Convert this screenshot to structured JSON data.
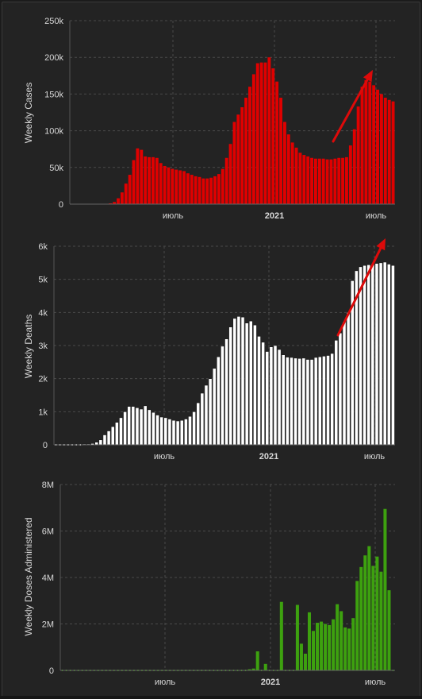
{
  "colors": {
    "background": "#232323",
    "cases": "#e00000",
    "deaths": "#ffffff",
    "doses": "#3da10f",
    "arrow": "#dd0a0a",
    "grid": "#4a4a4a",
    "text": "#d9d9d9"
  },
  "chart_data": [
    {
      "type": "bar",
      "ylabel": "Weekly Cases",
      "xlabel": "",
      "ylim": [
        0,
        250000
      ],
      "y_ticks": [
        "0",
        "50k",
        "100k",
        "150k",
        "200k",
        "250k"
      ],
      "y_tick_values": [
        0,
        50000,
        100000,
        150000,
        200000,
        250000
      ],
      "x_tick_labels": [
        "июль",
        "2021",
        "июль"
      ],
      "x_tick_bold": [
        false,
        true,
        false
      ],
      "grid": true,
      "trend_arrow": true,
      "values": [
        0,
        0,
        0,
        0,
        0,
        0,
        0,
        0,
        0,
        0,
        1000,
        3000,
        8000,
        16000,
        28000,
        40000,
        60000,
        76000,
        74000,
        65000,
        64000,
        64000,
        63000,
        56000,
        52000,
        50000,
        48000,
        47000,
        46000,
        45000,
        42000,
        40000,
        38000,
        37000,
        35000,
        35000,
        36000,
        38000,
        41000,
        48000,
        63000,
        82000,
        112000,
        122000,
        132000,
        145000,
        160000,
        177000,
        192000,
        193000,
        193000,
        200000,
        185000,
        167000,
        145000,
        112000,
        95000,
        84000,
        77000,
        70000,
        67000,
        65000,
        63000,
        62000,
        62000,
        62000,
        61000,
        61000,
        62000,
        63000,
        63000,
        64000,
        80000,
        102000,
        133000,
        160000,
        169000,
        167000,
        162000,
        156000,
        150000,
        145000,
        142000,
        140000
      ]
    },
    {
      "type": "bar",
      "ylabel": "Weekly Deaths",
      "xlabel": "",
      "ylim": [
        0,
        6000
      ],
      "y_ticks": [
        "0",
        "1k",
        "2k",
        "3k",
        "4k",
        "5k",
        "6k"
      ],
      "y_tick_values": [
        0,
        1000,
        2000,
        3000,
        4000,
        5000,
        6000
      ],
      "x_tick_labels": [
        "июль",
        "2021",
        "июль"
      ],
      "x_tick_bold": [
        false,
        true,
        false
      ],
      "grid": true,
      "trend_arrow": true,
      "values": [
        0,
        0,
        0,
        0,
        0,
        0,
        0,
        10,
        20,
        40,
        80,
        150,
        300,
        420,
        550,
        680,
        820,
        1000,
        1160,
        1160,
        1120,
        1080,
        1180,
        1060,
        980,
        900,
        840,
        820,
        780,
        740,
        720,
        740,
        780,
        860,
        1000,
        1270,
        1560,
        1800,
        2000,
        2310,
        2660,
        2980,
        3200,
        3560,
        3820,
        3880,
        3860,
        3680,
        3740,
        3620,
        3280,
        3100,
        2820,
        2960,
        3000,
        2880,
        2720,
        2650,
        2640,
        2620,
        2610,
        2620,
        2580,
        2580,
        2640,
        2660,
        2680,
        2700,
        2760,
        3160,
        3380,
        3720,
        4000,
        4960,
        5260,
        5380,
        5420,
        5440,
        5460,
        5480,
        5500,
        5520,
        5460,
        5420
      ]
    },
    {
      "type": "bar",
      "ylabel": "Weekly Doses Administered",
      "xlabel": "",
      "ylim": [
        0,
        8000000
      ],
      "y_ticks": [
        "0",
        "2M",
        "4M",
        "6M",
        "8M"
      ],
      "y_tick_values": [
        0,
        2000000,
        4000000,
        6000000,
        8000000
      ],
      "x_tick_labels": [
        "июль",
        "2021",
        "июль"
      ],
      "x_tick_bold": [
        false,
        true,
        false
      ],
      "grid": true,
      "trend_arrow": false,
      "values": [
        0,
        0,
        0,
        0,
        0,
        0,
        0,
        0,
        0,
        0,
        0,
        0,
        0,
        0,
        0,
        0,
        0,
        0,
        0,
        0,
        0,
        0,
        0,
        0,
        0,
        0,
        0,
        0,
        0,
        0,
        0,
        0,
        0,
        0,
        0,
        0,
        0,
        0,
        0,
        0,
        0,
        0,
        0,
        0,
        0,
        0,
        0,
        50000,
        80000,
        820000,
        0,
        280000,
        0,
        0,
        0,
        2950000,
        0,
        0,
        0,
        2820000,
        1150000,
        720000,
        2500000,
        1700000,
        2050000,
        2100000,
        2000000,
        1950000,
        2200000,
        2850000,
        2550000,
        1850000,
        1800000,
        2250000,
        3850000,
        4450000,
        4950000,
        5350000,
        4500000,
        4900000,
        4250000,
        6950000,
        3450000,
        0
      ]
    }
  ]
}
